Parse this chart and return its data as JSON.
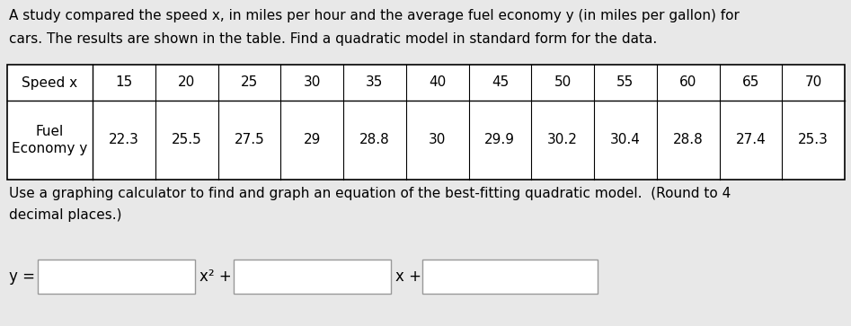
{
  "title_line1": "A study compared the speed x, in miles per hour and the average fuel economy y (in miles per gallon) for",
  "title_line2": "cars. The results are shown in the table. Find a quadratic model in standard form for the data.",
  "speed_label": "Speed x",
  "fuel_label": "Fuel\nEconomy y",
  "speed_values": [
    15,
    20,
    25,
    30,
    35,
    40,
    45,
    50,
    55,
    60,
    65,
    70
  ],
  "fuel_values": [
    22.3,
    25.5,
    27.5,
    29,
    28.8,
    30,
    29.9,
    30.2,
    30.4,
    28.8,
    27.4,
    25.3
  ],
  "instruction_line1": "Use a graphing calculator to find and graph an equation of the best-fitting quadratic model.  (Round to 4",
  "instruction_line2": "decimal places.)",
  "equation_label": "y =",
  "x2_label": "x² +",
  "x_label": "x +",
  "bg_color": "#e8e8e8",
  "box_color": "#ffffff",
  "text_color": "#000000",
  "font_size_title": 11.0,
  "font_size_table": 11.0,
  "font_size_eq": 12.0
}
